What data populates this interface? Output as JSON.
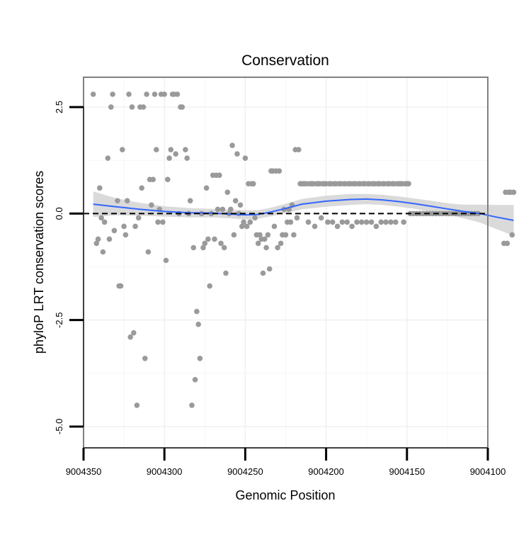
{
  "chart_data": {
    "type": "scatter",
    "title": "Conservation",
    "xlabel": "Genomic Position",
    "ylabel": "phyloP LRT conservation scores",
    "x_reversed": true,
    "xlim": [
      9004100,
      9004350
    ],
    "ylim": [
      -5.5,
      3.2
    ],
    "x_ticks": [
      9004350,
      9004300,
      9004250,
      9004200,
      9004150,
      9004100
    ],
    "x_tick_labels": [
      "9004350",
      "9004300",
      "9004250",
      "9004200",
      "9004150",
      "9004100"
    ],
    "y_ticks": [
      2.5,
      0.0,
      -2.5,
      -5.0
    ],
    "y_tick_labels": [
      "2.5",
      "0.0",
      "-2.5",
      "-5.0"
    ],
    "reference_line": {
      "y": 0,
      "style": "dashed",
      "color": "#000000"
    },
    "point_color": "#9a9a9a",
    "smooth_color": "#3366ff",
    "band_color": "#d4d4d4",
    "grid": true,
    "points": [
      [
        9004344,
        2.8
      ],
      [
        9004342,
        -0.7
      ],
      [
        9004341,
        -0.6
      ],
      [
        9004340,
        0.6
      ],
      [
        9004339,
        -0.1
      ],
      [
        9004338,
        -0.9
      ],
      [
        9004337,
        -0.2
      ],
      [
        9004335,
        1.3
      ],
      [
        9004334,
        -0.6
      ],
      [
        9004333,
        2.5
      ],
      [
        9004332,
        2.8
      ],
      [
        9004331,
        -0.4
      ],
      [
        9004329,
        0.3
      ],
      [
        9004328,
        -1.7
      ],
      [
        9004327,
        -1.7
      ],
      [
        9004326,
        1.5
      ],
      [
        9004325,
        -0.3
      ],
      [
        9004324,
        -0.5
      ],
      [
        9004323,
        0.3
      ],
      [
        9004322,
        2.8
      ],
      [
        9004321,
        -2.9
      ],
      [
        9004320,
        2.5
      ],
      [
        9004319,
        -2.8
      ],
      [
        9004318,
        -0.3
      ],
      [
        9004317,
        -4.5
      ],
      [
        9004316,
        -0.1
      ],
      [
        9004315,
        2.5
      ],
      [
        9004314,
        0.6
      ],
      [
        9004313,
        2.5
      ],
      [
        9004312,
        -3.4
      ],
      [
        9004311,
        2.8
      ],
      [
        9004310,
        -0.9
      ],
      [
        9004309,
        0.8
      ],
      [
        9004308,
        0.2
      ],
      [
        9004307,
        0.8
      ],
      [
        9004306,
        2.8
      ],
      [
        9004305,
        1.5
      ],
      [
        9004304,
        -0.2
      ],
      [
        9004303,
        0.1
      ],
      [
        9004302,
        2.8
      ],
      [
        9004301,
        -0.2
      ],
      [
        9004300,
        2.8
      ],
      [
        9004299,
        -1.1
      ],
      [
        9004298,
        0.8
      ],
      [
        9004297,
        1.3
      ],
      [
        9004296,
        1.5
      ],
      [
        9004295,
        2.8
      ],
      [
        9004294,
        2.8
      ],
      [
        9004293,
        1.4
      ],
      [
        9004292,
        2.8
      ],
      [
        9004291,
        0.0
      ],
      [
        9004290,
        2.5
      ],
      [
        9004289,
        2.5
      ],
      [
        9004287,
        1.5
      ],
      [
        9004286,
        1.3
      ],
      [
        9004285,
        0.0
      ],
      [
        9004284,
        0.3
      ],
      [
        9004283,
        -4.5
      ],
      [
        9004282,
        -0.8
      ],
      [
        9004281,
        -3.9
      ],
      [
        9004280,
        -2.3
      ],
      [
        9004279,
        -2.6
      ],
      [
        9004278,
        -3.4
      ],
      [
        9004277,
        0.0
      ],
      [
        9004276,
        -0.8
      ],
      [
        9004275,
        -0.7
      ],
      [
        9004274,
        0.6
      ],
      [
        9004273,
        -0.6
      ],
      [
        9004272,
        -1.7
      ],
      [
        9004271,
        0.0
      ],
      [
        9004270,
        0.9
      ],
      [
        9004269,
        -0.6
      ],
      [
        9004268,
        0.9
      ],
      [
        9004267,
        0.1
      ],
      [
        9004266,
        0.9
      ],
      [
        9004265,
        -0.7
      ],
      [
        9004264,
        0.1
      ],
      [
        9004263,
        -0.8
      ],
      [
        9004262,
        -1.4
      ],
      [
        9004261,
        0.5
      ],
      [
        9004260,
        0.0
      ],
      [
        9004259,
        0.1
      ],
      [
        9004258,
        1.6
      ],
      [
        9004257,
        -0.5
      ],
      [
        9004256,
        0.3
      ],
      [
        9004255,
        1.4
      ],
      [
        9004254,
        0.0
      ],
      [
        9004253,
        0.2
      ],
      [
        9004252,
        -0.3
      ],
      [
        9004251,
        -0.2
      ],
      [
        9004250,
        1.3
      ],
      [
        9004249,
        -0.3
      ],
      [
        9004248,
        0.7
      ],
      [
        9004247,
        -0.2
      ],
      [
        9004246,
        0.7
      ],
      [
        9004245,
        0.7
      ],
      [
        9004244,
        -0.1
      ],
      [
        9004243,
        -0.5
      ],
      [
        9004242,
        -0.7
      ],
      [
        9004241,
        -0.5
      ],
      [
        9004240,
        -0.6
      ],
      [
        9004239,
        -1.4
      ],
      [
        9004238,
        -0.6
      ],
      [
        9004237,
        -0.8
      ],
      [
        9004236,
        -0.5
      ],
      [
        9004235,
        -1.3
      ],
      [
        9004234,
        1.0
      ],
      [
        9004233,
        1.0
      ],
      [
        9004232,
        -0.3
      ],
      [
        9004231,
        1.0
      ],
      [
        9004230,
        -0.8
      ],
      [
        9004229,
        1.0
      ],
      [
        9004228,
        -0.7
      ],
      [
        9004227,
        -0.5
      ],
      [
        9004226,
        0.1
      ],
      [
        9004225,
        -0.5
      ],
      [
        9004224,
        -0.2
      ],
      [
        9004223,
        0.1
      ],
      [
        9004222,
        -0.2
      ],
      [
        9004221,
        0.2
      ],
      [
        9004220,
        -0.5
      ],
      [
        9004219,
        1.5
      ],
      [
        9004218,
        -0.1
      ],
      [
        9004217,
        1.5
      ],
      [
        9004216,
        0.7
      ],
      [
        9004215,
        0.7
      ],
      [
        9004214,
        0.7
      ],
      [
        9004213,
        0.7
      ],
      [
        9004212,
        0.7
      ],
      [
        9004211,
        -0.2
      ],
      [
        9004210,
        0.7
      ],
      [
        9004209,
        0.7
      ],
      [
        9004208,
        0.7
      ],
      [
        9004207,
        -0.3
      ],
      [
        9004206,
        0.7
      ],
      [
        9004205,
        0.7
      ],
      [
        9004204,
        0.7
      ],
      [
        9004203,
        -0.1
      ],
      [
        9004202,
        0.7
      ],
      [
        9004201,
        0.7
      ],
      [
        9004200,
        0.7
      ],
      [
        9004199,
        -0.2
      ],
      [
        9004198,
        0.7
      ],
      [
        9004197,
        0.7
      ],
      [
        9004196,
        -0.2
      ],
      [
        9004195,
        0.7
      ],
      [
        9004194,
        0.7
      ],
      [
        9004193,
        -0.3
      ],
      [
        9004192,
        0.7
      ],
      [
        9004191,
        0.7
      ],
      [
        9004190,
        -0.2
      ],
      [
        9004189,
        0.7
      ],
      [
        9004188,
        0.7
      ],
      [
        9004187,
        -0.2
      ],
      [
        9004186,
        0.7
      ],
      [
        9004185,
        0.7
      ],
      [
        9004184,
        -0.3
      ],
      [
        9004183,
        0.7
      ],
      [
        9004182,
        0.7
      ],
      [
        9004181,
        -0.2
      ],
      [
        9004180,
        0.7
      ],
      [
        9004179,
        0.7
      ],
      [
        9004178,
        -0.2
      ],
      [
        9004177,
        0.7
      ],
      [
        9004176,
        0.7
      ],
      [
        9004175,
        -0.2
      ],
      [
        9004174,
        0.7
      ],
      [
        9004173,
        0.7
      ],
      [
        9004172,
        -0.2
      ],
      [
        9004171,
        0.7
      ],
      [
        9004170,
        0.7
      ],
      [
        9004169,
        -0.3
      ],
      [
        9004168,
        0.7
      ],
      [
        9004167,
        0.7
      ],
      [
        9004166,
        -0.2
      ],
      [
        9004165,
        0.7
      ],
      [
        9004164,
        0.7
      ],
      [
        9004163,
        -0.2
      ],
      [
        9004162,
        0.7
      ],
      [
        9004161,
        0.7
      ],
      [
        9004160,
        -0.2
      ],
      [
        9004159,
        0.7
      ],
      [
        9004158,
        0.7
      ],
      [
        9004157,
        -0.2
      ],
      [
        9004156,
        0.7
      ],
      [
        9004155,
        0.7
      ],
      [
        9004154,
        0.7
      ],
      [
        9004153,
        0.7
      ],
      [
        9004152,
        -0.2
      ],
      [
        9004151,
        0.7
      ],
      [
        9004150,
        0.7
      ],
      [
        9004149,
        0.7
      ],
      [
        9004148,
        0.0
      ],
      [
        9004146,
        0.0
      ],
      [
        9004144,
        0.0
      ],
      [
        9004142,
        0.0
      ],
      [
        9004140,
        0.0
      ],
      [
        9004138,
        0.0
      ],
      [
        9004136,
        0.0
      ],
      [
        9004134,
        0.0
      ],
      [
        9004132,
        0.0
      ],
      [
        9004130,
        0.0
      ],
      [
        9004128,
        0.0
      ],
      [
        9004126,
        0.0
      ],
      [
        9004124,
        0.0
      ],
      [
        9004122,
        0.0
      ],
      [
        9004120,
        0.0
      ],
      [
        9004118,
        0.0
      ],
      [
        9004116,
        0.0
      ],
      [
        9004114,
        0.0
      ],
      [
        9004112,
        0.0
      ],
      [
        9004110,
        0.0
      ],
      [
        9004108,
        0.0
      ],
      [
        9004106,
        0.0
      ],
      [
        9004090,
        -0.7
      ],
      [
        9004089,
        0.5
      ],
      [
        9004088,
        -0.7
      ],
      [
        9004087,
        0.5
      ],
      [
        9004086,
        0.5
      ],
      [
        9004085,
        -0.5
      ],
      [
        9004084,
        0.5
      ]
    ],
    "smooth": [
      [
        9004344,
        0.22
      ],
      [
        9004330,
        0.16
      ],
      [
        9004315,
        0.1
      ],
      [
        9004300,
        0.05
      ],
      [
        9004285,
        0.02
      ],
      [
        9004270,
        0.01
      ],
      [
        9004260,
        -0.01
      ],
      [
        9004250,
        -0.03
      ],
      [
        9004242,
        -0.02
      ],
      [
        9004235,
        0.03
      ],
      [
        9004225,
        0.12
      ],
      [
        9004215,
        0.22
      ],
      [
        9004200,
        0.29
      ],
      [
        9004185,
        0.33
      ],
      [
        9004175,
        0.34
      ],
      [
        9004165,
        0.32
      ],
      [
        9004155,
        0.28
      ],
      [
        9004145,
        0.23
      ],
      [
        9004135,
        0.17
      ],
      [
        9004125,
        0.11
      ],
      [
        9004115,
        0.05
      ],
      [
        9004105,
        0.0
      ],
      [
        9004095,
        -0.08
      ],
      [
        9004084,
        -0.16
      ]
    ],
    "band_halfwidth": [
      [
        9004344,
        0.3
      ],
      [
        9004330,
        0.2
      ],
      [
        9004315,
        0.15
      ],
      [
        9004300,
        0.12
      ],
      [
        9004285,
        0.11
      ],
      [
        9004270,
        0.1
      ],
      [
        9004260,
        0.1
      ],
      [
        9004250,
        0.11
      ],
      [
        9004242,
        0.1
      ],
      [
        9004235,
        0.1
      ],
      [
        9004225,
        0.11
      ],
      [
        9004215,
        0.12
      ],
      [
        9004200,
        0.13
      ],
      [
        9004185,
        0.13
      ],
      [
        9004175,
        0.12
      ],
      [
        9004165,
        0.12
      ],
      [
        9004155,
        0.12
      ],
      [
        9004145,
        0.12
      ],
      [
        9004135,
        0.13
      ],
      [
        9004125,
        0.13
      ],
      [
        9004115,
        0.16
      ],
      [
        9004105,
        0.21
      ],
      [
        9004095,
        0.28
      ],
      [
        9004084,
        0.36
      ]
    ]
  }
}
